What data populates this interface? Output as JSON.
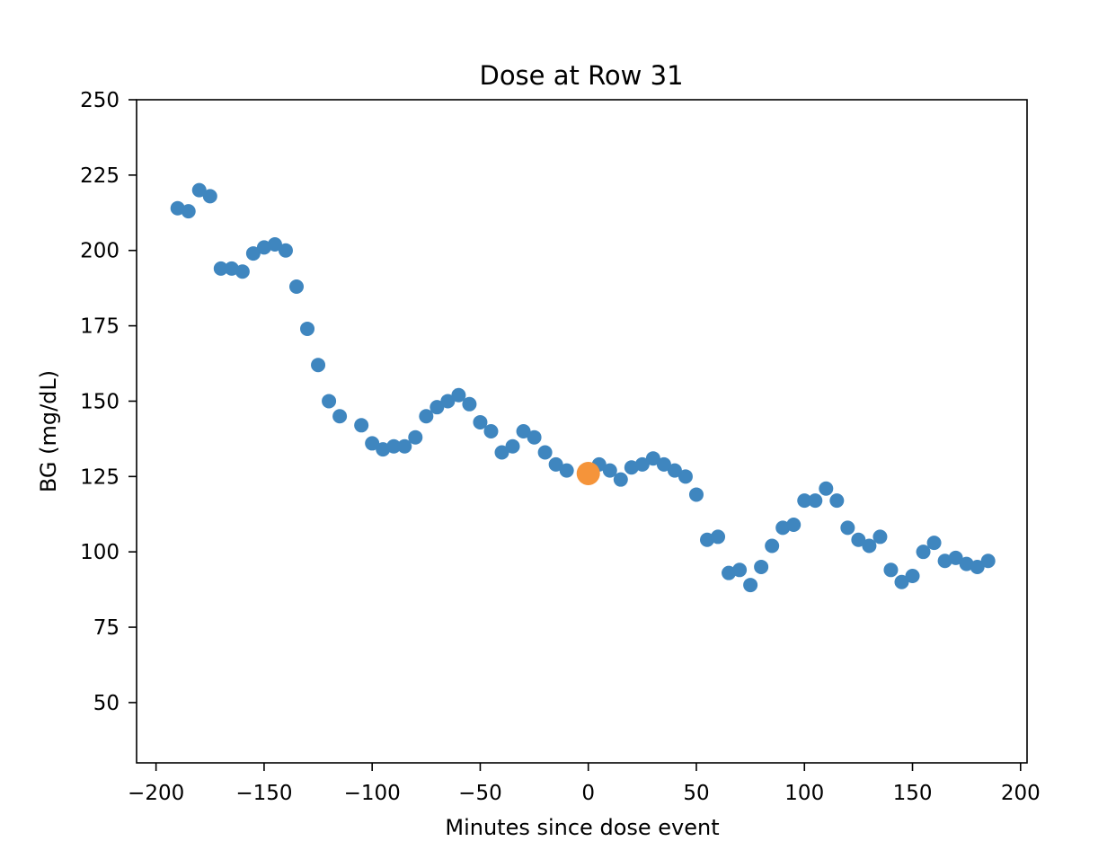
{
  "chart_data": {
    "type": "scatter",
    "title": "Dose at Row 31",
    "xlabel": "Minutes since dose event",
    "ylabel": "BG (mg/dL)",
    "xlim": [
      -209,
      203
    ],
    "ylim": [
      30,
      250
    ],
    "xticks": [
      -200,
      -150,
      -100,
      -50,
      0,
      50,
      100,
      150,
      200
    ],
    "xtick_labels": [
      "−200",
      "−150",
      "−100",
      "−50",
      "0",
      "50",
      "100",
      "150",
      "200"
    ],
    "yticks": [
      50,
      75,
      100,
      125,
      150,
      175,
      200,
      225,
      250
    ],
    "ytick_labels": [
      "50",
      "75",
      "100",
      "125",
      "150",
      "175",
      "200",
      "225",
      "250"
    ],
    "grid": false,
    "series": [
      {
        "color": "#3f86bf",
        "x": [
          -190,
          -185,
          -180,
          -175,
          -170,
          -165,
          -160,
          -155,
          -150,
          -145,
          -140,
          -135,
          -130,
          -125,
          -120,
          -115,
          -105,
          -100,
          -95,
          -90,
          -85,
          -80,
          -75,
          -70,
          -65,
          -60,
          -55,
          -50,
          -45,
          -40,
          -35,
          -30,
          -25,
          -20,
          -15,
          -10,
          5,
          10,
          15,
          20,
          25,
          30,
          35,
          40,
          45,
          50,
          55,
          60,
          65,
          70,
          75,
          80,
          85,
          90,
          95,
          100,
          105,
          110,
          115,
          120,
          125,
          130,
          135,
          140,
          145,
          150,
          155,
          160,
          165,
          170,
          175,
          180,
          185
        ],
        "y": [
          214,
          213,
          220,
          218,
          194,
          194,
          193,
          199,
          201,
          202,
          200,
          188,
          174,
          162,
          150,
          145,
          142,
          136,
          134,
          135,
          135,
          138,
          145,
          148,
          150,
          152,
          149,
          143,
          140,
          133,
          135,
          140,
          138,
          133,
          129,
          127,
          129,
          127,
          124,
          128,
          129,
          131,
          129,
          127,
          125,
          119,
          104,
          105,
          93,
          94,
          89,
          95,
          102,
          108,
          109,
          117,
          117,
          121,
          117,
          108,
          104,
          102,
          105,
          94,
          90,
          92,
          100,
          103,
          97,
          98,
          96,
          95,
          97
        ]
      },
      {
        "color": "#f5943a",
        "x": [
          0
        ],
        "y": [
          126
        ]
      }
    ]
  }
}
